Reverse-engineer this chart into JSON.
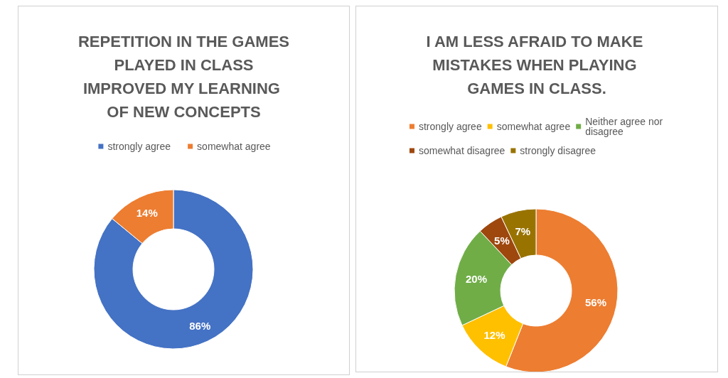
{
  "chart_data": [
    {
      "type": "donut",
      "title": "REPETITION IN THE GAMES PLAYED IN CLASS IMPROVED MY LEARNING OF NEW CONCEPTS",
      "categories": [
        "strongly agree",
        "somewhat agree"
      ],
      "values": [
        86,
        14
      ],
      "colors": [
        "#4472c4",
        "#ed7d31"
      ],
      "value_labels": [
        "86%",
        "14%"
      ],
      "legend": "top"
    },
    {
      "type": "donut",
      "title": "I AM LESS AFRAID TO MAKE MISTAKES WHEN PLAYING GAMES IN CLASS.",
      "categories": [
        "strongly agree",
        "somewhat agree",
        "Neither agree nor disagree",
        "somewhat disagree",
        "strongly disagree"
      ],
      "values": [
        56,
        12,
        20,
        5,
        7
      ],
      "colors": [
        "#ed7d31",
        "#ffc000",
        "#70ad47",
        "#9e480e",
        "#997300"
      ],
      "value_labels": [
        "56%",
        "12%",
        "20%",
        "5%",
        "7%"
      ],
      "legend": "top"
    }
  ]
}
